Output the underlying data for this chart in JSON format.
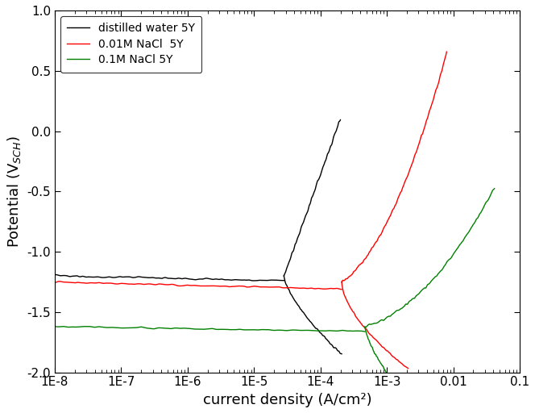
{
  "xlabel": "current density (A/cm²)",
  "ylabel": "Potential (V$_{SCH}$)",
  "ylim": [
    -2.0,
    1.0
  ],
  "background_color": "#ffffff",
  "legend_labels": [
    "distilled water 5Y",
    "0.01M NaCl  5Y",
    "0.1M NaCl 5Y"
  ],
  "colors": [
    "black",
    "red",
    "green"
  ],
  "linewidth": 1.0,
  "tick_label_fontsize": 11,
  "axis_label_fontsize": 13
}
